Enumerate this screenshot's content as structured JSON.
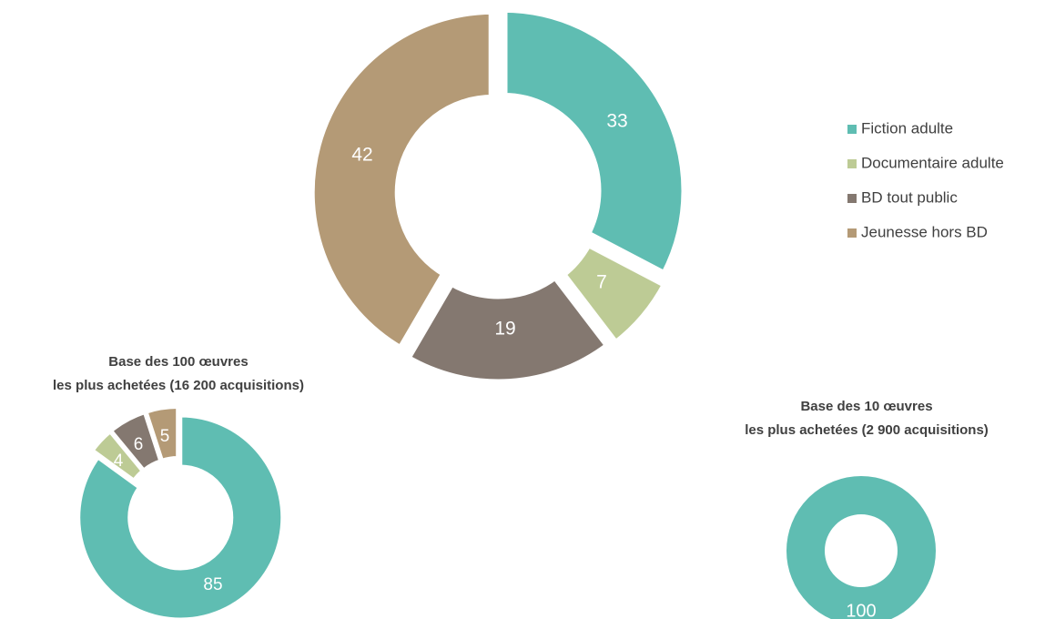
{
  "legend": [
    {
      "label": "Fiction adulte",
      "color": "#5fbdb2"
    },
    {
      "label": "Documentaire adulte",
      "color": "#bdcb95"
    },
    {
      "label": "BD tout public",
      "color": "#847870"
    },
    {
      "label": "Jeunesse hors BD",
      "color": "#b49a76"
    }
  ],
  "chart_data": [
    {
      "type": "pie",
      "variant": "donut",
      "title": "",
      "categories": [
        "Fiction adulte",
        "Documentaire adulte",
        "BD tout public",
        "Jeunesse hors BD"
      ],
      "values": [
        33,
        7,
        19,
        42
      ],
      "data_labels": [
        "33",
        "7",
        "19",
        "42"
      ]
    },
    {
      "type": "pie",
      "variant": "donut",
      "title": [
        "Base des 100 œuvres",
        "les plus achetées (16 200 acquisitions)"
      ],
      "categories": [
        "Fiction adulte",
        "Documentaire adulte",
        "BD tout public",
        "Jeunesse hors BD"
      ],
      "values": [
        85,
        4,
        6,
        5
      ],
      "data_labels": [
        "85",
        "4",
        "6",
        "5"
      ]
    },
    {
      "type": "pie",
      "variant": "donut",
      "title": [
        "Base des 10 œuvres",
        "les plus achetées (2 900 acquisitions)"
      ],
      "categories": [
        "Fiction adulte"
      ],
      "values": [
        100
      ],
      "data_labels": [
        "100"
      ]
    }
  ]
}
